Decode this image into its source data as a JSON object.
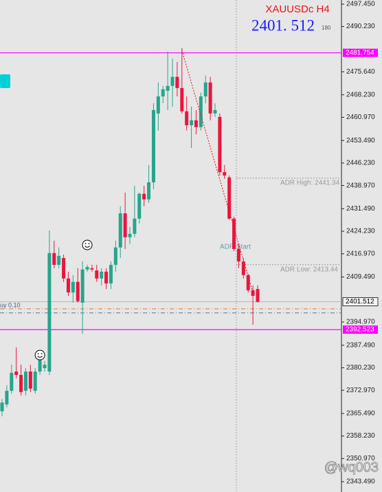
{
  "chart_data": {
    "type": "candlestick",
    "title": "XAUUSDc H4",
    "price_text": "2401. 512",
    "spread_text": "180",
    "watermark": "@wq003",
    "up_color": "#27a58c",
    "down_color": "#e8163e",
    "ylim": [
      2340.17,
      2498.78
    ],
    "yticks": [
      {
        "value": 2497.45,
        "label": "2497.450"
      },
      {
        "value": 2490.23,
        "label": "2490.230"
      },
      {
        "value": 2475.64,
        "label": "2475.640"
      },
      {
        "value": 2468.23,
        "label": "2468.230"
      },
      {
        "value": 2460.97,
        "label": "2460.970"
      },
      {
        "value": 2453.49,
        "label": "2453.490"
      },
      {
        "value": 2446.23,
        "label": "2446.230"
      },
      {
        "value": 2438.97,
        "label": "2438.970"
      },
      {
        "value": 2431.49,
        "label": "2431.490"
      },
      {
        "value": 2424.23,
        "label": "2424.230"
      },
      {
        "value": 2416.97,
        "label": "2416.970"
      },
      {
        "value": 2409.49,
        "label": "2409.490"
      },
      {
        "value": 2394.97,
        "label": "2394.970"
      },
      {
        "value": 2387.49,
        "label": "2387.490"
      },
      {
        "value": 2380.23,
        "label": "2380.230"
      },
      {
        "value": 2372.97,
        "label": "2372.970"
      },
      {
        "value": 2365.49,
        "label": "2365.490"
      },
      {
        "value": 2358.23,
        "label": "2358.230"
      },
      {
        "value": 2350.97,
        "label": "2350.970"
      },
      {
        "value": 2343.49,
        "label": "2343.490"
      }
    ],
    "open": [
      2366.2,
      2368.4,
      2372.8,
      2379.0,
      2377.9,
      2372.8,
      2379.0,
      2372.8,
      2379.0,
      2380.1,
      2379.0,
      2417.2,
      2413.4,
      2415.6,
      2409.0,
      2404.5,
      2407.9,
      2401.2,
      2411.9,
      2412.3,
      2411.6,
      2409.0,
      2411.2,
      2407.4,
      2413.4,
      2419.0,
      2430.0,
      2422.3,
      2423.4,
      2428.3,
      2436.3,
      2434.5,
      2440.0,
      2462.2,
      2467.7,
      2469.5,
      2471.1,
      2474.0,
      2470.4,
      2462.9,
      2458.4,
      2460.0,
      2457.8,
      2467.7,
      2472.2,
      2462.2,
      2461.1,
      2443.3,
      2441.6,
      2428.3,
      2418.5,
      2414.5,
      2410.1,
      2405.2,
      2405.6
    ],
    "high": [
      2370.2,
      2374.6,
      2381.2,
      2386.8,
      2381.2,
      2380.1,
      2381.2,
      2380.1,
      2385.7,
      2382.4,
      2424.5,
      2421.2,
      2419.0,
      2416.7,
      2411.2,
      2410.1,
      2412.3,
      2414.5,
      2413.4,
      2413.4,
      2413.4,
      2412.3,
      2412.3,
      2414.5,
      2421.2,
      2432.3,
      2436.7,
      2425.6,
      2438.9,
      2436.7,
      2438.9,
      2445.6,
      2465.5,
      2472.2,
      2471.1,
      2482.2,
      2479.9,
      2478.8,
      2483.3,
      2467.7,
      2464.4,
      2463.3,
      2468.9,
      2474.4,
      2474.0,
      2465.5,
      2462.2,
      2445.6,
      2442.2,
      2428.9,
      2420.1,
      2415.6,
      2410.5,
      2406.8,
      2406.8
    ],
    "low": [
      2364.6,
      2367.5,
      2371.9,
      2376.8,
      2371.3,
      2371.3,
      2372.4,
      2371.9,
      2377.9,
      2379.0,
      2377.9,
      2412.3,
      2412.3,
      2407.9,
      2403.4,
      2401.2,
      2401.2,
      2391.2,
      2411.2,
      2411.2,
      2407.9,
      2406.8,
      2405.6,
      2405.6,
      2411.2,
      2415.6,
      2418.5,
      2420.1,
      2422.3,
      2426.7,
      2432.3,
      2433.4,
      2437.8,
      2456.7,
      2465.5,
      2463.3,
      2464.4,
      2467.7,
      2462.2,
      2456.7,
      2451.1,
      2455.5,
      2456.7,
      2465.5,
      2460.0,
      2461.1,
      2442.2,
      2441.1,
      2427.8,
      2417.8,
      2412.3,
      2409.0,
      2404.5,
      2394.1,
      2401.2
    ],
    "close": [
      2369.0,
      2372.8,
      2378.6,
      2377.9,
      2372.4,
      2379.0,
      2373.5,
      2379.0,
      2383.0,
      2381.2,
      2417.2,
      2413.4,
      2416.3,
      2409.0,
      2404.5,
      2407.9,
      2401.7,
      2411.9,
      2412.7,
      2411.9,
      2409.0,
      2411.2,
      2407.4,
      2413.4,
      2419.0,
      2430.0,
      2422.3,
      2423.4,
      2428.3,
      2436.3,
      2434.5,
      2440.0,
      2463.3,
      2467.7,
      2470.0,
      2471.1,
      2474.0,
      2470.4,
      2462.9,
      2458.4,
      2460.0,
      2457.8,
      2467.7,
      2472.2,
      2462.2,
      2463.3,
      2443.3,
      2442.2,
      2428.3,
      2418.5,
      2414.5,
      2410.1,
      2405.2,
      2403.4,
      2401.5
    ],
    "price_levels": [
      {
        "value": 2481.754,
        "color": "#ff00ff"
      },
      {
        "value": 2392.523,
        "color": "#ff00ff"
      },
      {
        "value": 2401.512,
        "color": "#b8b8b8"
      }
    ],
    "adr_levels": [
      {
        "label": "ADR High: 2441.34",
        "value": 2441.34
      },
      {
        "label": "ADR Low: 2413.44",
        "value": 2413.44
      }
    ],
    "adr_start": "ADR Start",
    "order_lines": [
      {
        "label": "uy 0.10",
        "value": 2399.2,
        "color": "#e07a2a"
      },
      {
        "value": 2397.9,
        "color": "#3c7f9c"
      }
    ],
    "trendline": {
      "values": [
        2482.5,
        2404.5
      ],
      "color": "#ff0000"
    }
  }
}
